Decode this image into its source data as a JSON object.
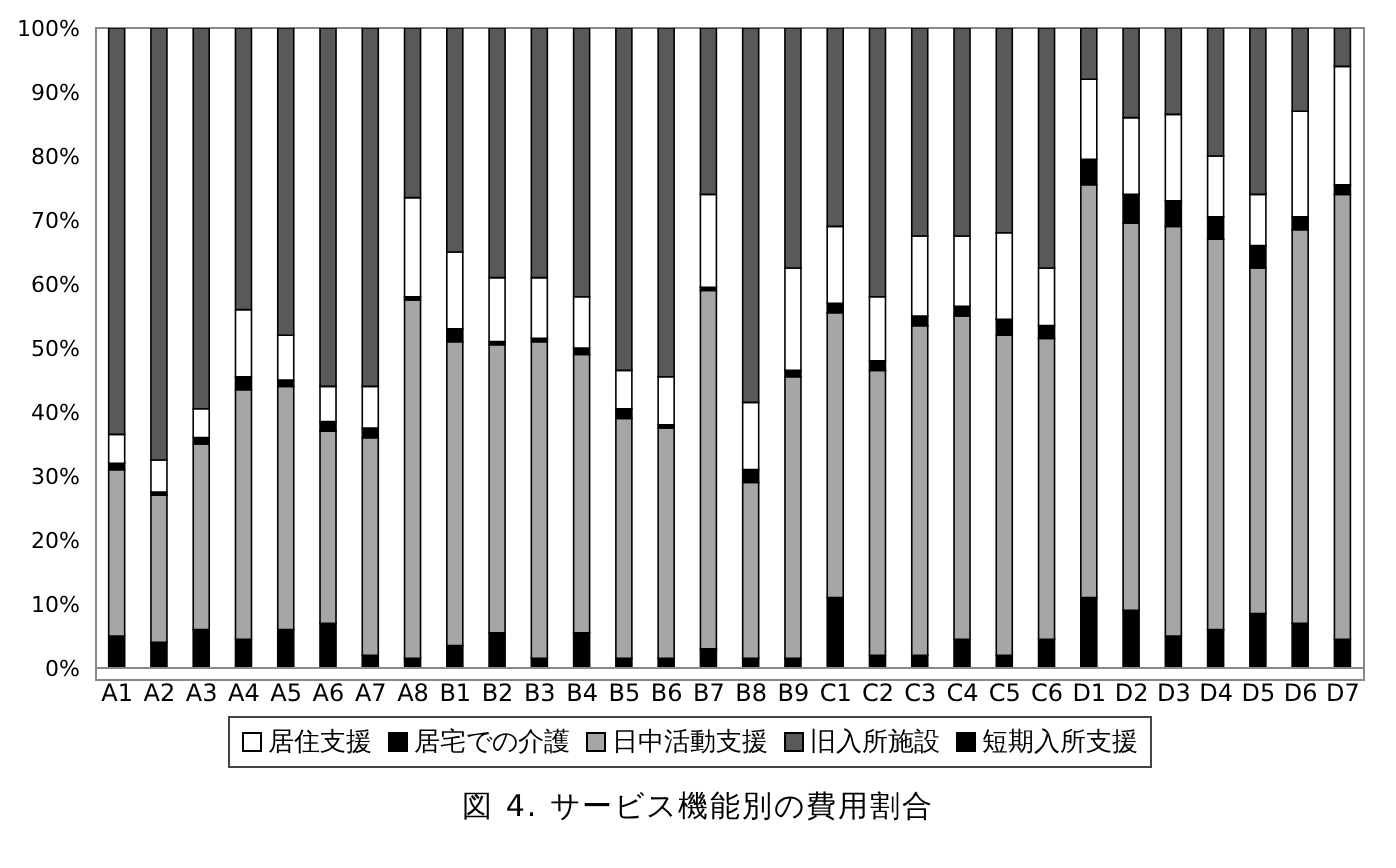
{
  "chart_data": {
    "type": "bar",
    "stacked": true,
    "title": "図 4.  サービス機能別の費用割合",
    "categories": [
      "A1",
      "A2",
      "A3",
      "A4",
      "A5",
      "A6",
      "A7",
      "A8",
      "B1",
      "B2",
      "B3",
      "B4",
      "B5",
      "B6",
      "B7",
      "B8",
      "B9",
      "C1",
      "C2",
      "C3",
      "C4",
      "C5",
      "C6",
      "D1",
      "D2",
      "D3",
      "D4",
      "D5",
      "D6",
      "D7"
    ],
    "series": [
      {
        "name": "居宅での介護",
        "color": "#000000",
        "values": [
          5,
          4,
          6,
          4.5,
          6,
          7,
          2,
          1.5,
          3.5,
          5.5,
          1.5,
          5.5,
          1.5,
          1.5,
          3,
          1.5,
          1.5,
          11,
          2,
          2,
          4.5,
          2,
          4.5,
          11,
          9,
          5,
          6,
          8.5,
          7,
          4.5
        ]
      },
      {
        "name": "日中活動支援",
        "color": "#a6a6a6",
        "values": [
          26,
          23,
          29,
          39,
          38,
          30,
          34,
          56,
          47.5,
          45,
          49.5,
          43.5,
          37.5,
          36,
          56,
          27.5,
          44,
          44.5,
          44.5,
          51.5,
          50.5,
          50,
          47,
          64.5,
          60.5,
          64,
          61,
          54,
          61.5,
          69.5
        ]
      },
      {
        "name": "短期入所支援",
        "color": "#000000",
        "values": [
          1,
          0.5,
          1,
          2,
          1,
          1.5,
          1.5,
          0.5,
          2,
          0.5,
          0.5,
          1,
          1.5,
          0.5,
          0.5,
          2,
          1,
          1.5,
          1.5,
          1.5,
          1.5,
          2.5,
          2,
          4,
          4.5,
          4,
          3.5,
          3.5,
          2,
          1.5
        ]
      },
      {
        "name": "居住支援",
        "color": "#ffffff",
        "values": [
          4.5,
          5,
          4.5,
          10.5,
          7,
          5.5,
          6.5,
          15.5,
          12,
          10,
          9.5,
          8,
          6,
          7.5,
          14.5,
          10.5,
          16,
          12,
          10,
          12.5,
          11,
          13.5,
          9,
          12.5,
          12,
          13.5,
          9.5,
          8,
          16.5,
          18.5
        ]
      },
      {
        "name": "旧入所施設",
        "color": "#595959",
        "values": [
          63.5,
          67.5,
          59.5,
          44,
          48,
          56,
          56,
          26.5,
          35,
          39,
          39,
          42,
          53.5,
          54.5,
          26,
          58.5,
          37.5,
          31,
          42,
          32.5,
          32.5,
          32,
          37.5,
          8,
          14,
          13.5,
          20,
          26,
          13,
          6
        ]
      }
    ],
    "ylim": [
      0,
      100
    ],
    "yticks": [
      {
        "value": 0,
        "label": "0%"
      },
      {
        "value": 10,
        "label": "10%"
      },
      {
        "value": 20,
        "label": "20%"
      },
      {
        "value": 30,
        "label": "30%"
      },
      {
        "value": 40,
        "label": "40%"
      },
      {
        "value": 50,
        "label": "50%"
      },
      {
        "value": 60,
        "label": "60%"
      },
      {
        "value": 70,
        "label": "70%"
      },
      {
        "value": 80,
        "label": "80%"
      },
      {
        "value": 90,
        "label": "90%"
      },
      {
        "value": 100,
        "label": "100%"
      }
    ],
    "legend": "bottom",
    "grid": false
  }
}
